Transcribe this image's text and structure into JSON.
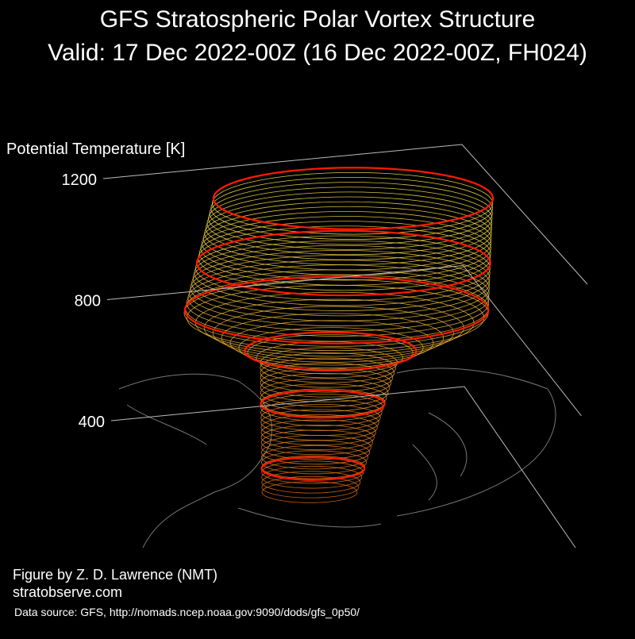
{
  "chart_data": {
    "type": "vortex3d",
    "title": "GFS Stratospheric Polar Vortex Structure",
    "subtitle": "Valid: 17 Dec 2022-00Z  (16 Dec 2022-00Z, FH024)",
    "z_label": "Potential Temperature [K]",
    "zlim": [
      400,
      1200
    ],
    "zticks": [
      400,
      800,
      1200
    ],
    "credit": "Figure by Z. D. Lawrence (NMT)",
    "website": "stratobserve.com",
    "source": "Data source: GFS, http://nomads.ncep.noaa.gov:9090/dods/gfs_0p50/"
  }
}
